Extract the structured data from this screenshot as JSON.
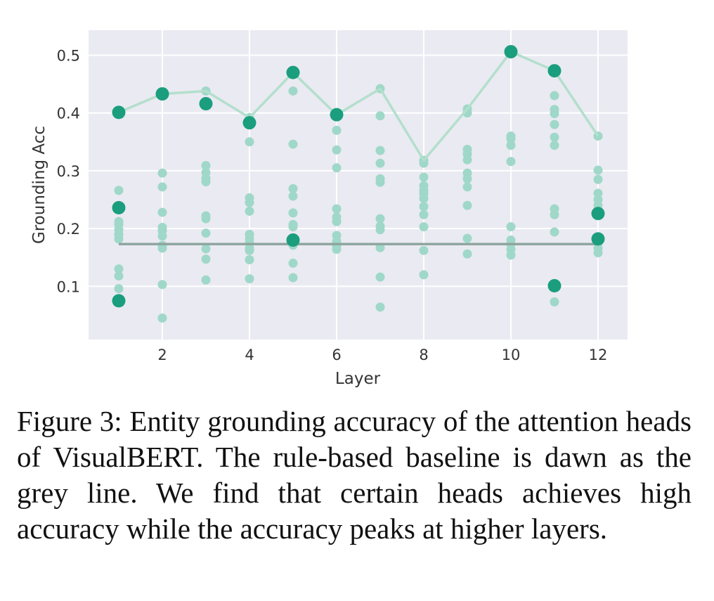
{
  "chart_data": {
    "type": "scatter",
    "xlabel": "Layer",
    "ylabel": "Grounding Acc",
    "xlim": [
      0,
      13
    ],
    "ylim": [
      0,
      0.55
    ],
    "x_ticks": [
      2,
      4,
      6,
      8,
      10,
      12
    ],
    "y_ticks": [
      0.1,
      0.2,
      0.3,
      0.4,
      0.5
    ],
    "grid": true,
    "background_color": "#eaeaf2",
    "colors": {
      "head_points": "#9fd8c8",
      "highlight_points": "#1b9e7e",
      "max_line": "#b3dfcc",
      "baseline": "#8fa6a0"
    },
    "baseline": {
      "x_range": [
        1,
        12
      ],
      "value": 0.173
    },
    "max_line": {
      "x": [
        1,
        2,
        3,
        4,
        5,
        6,
        7,
        8,
        9,
        10,
        11,
        12
      ],
      "y": [
        0.401,
        0.433,
        0.438,
        0.392,
        0.47,
        0.397,
        0.442,
        0.318,
        0.407,
        0.506,
        0.473,
        0.36
      ]
    },
    "heads": [
      {
        "layer": 1,
        "values": [
          0.266,
          0.212,
          0.207,
          0.198,
          0.19,
          0.182,
          0.13,
          0.118,
          0.096
        ]
      },
      {
        "layer": 2,
        "values": [
          0.296,
          0.272,
          0.228,
          0.202,
          0.196,
          0.187,
          0.171,
          0.166,
          0.103,
          0.045
        ]
      },
      {
        "layer": 3,
        "values": [
          0.438,
          0.309,
          0.297,
          0.287,
          0.281,
          0.222,
          0.217,
          0.192,
          0.165,
          0.147,
          0.111
        ]
      },
      {
        "layer": 4,
        "values": [
          0.392,
          0.35,
          0.253,
          0.245,
          0.23,
          0.19,
          0.182,
          0.175,
          0.166,
          0.162,
          0.146,
          0.113
        ]
      },
      {
        "layer": 5,
        "values": [
          0.438,
          0.346,
          0.269,
          0.256,
          0.227,
          0.207,
          0.203,
          0.171,
          0.14,
          0.115
        ]
      },
      {
        "layer": 6,
        "values": [
          0.37,
          0.336,
          0.305,
          0.234,
          0.22,
          0.212,
          0.188,
          0.178,
          0.17,
          0.164
        ]
      },
      {
        "layer": 7,
        "values": [
          0.442,
          0.395,
          0.335,
          0.313,
          0.286,
          0.28,
          0.217,
          0.204,
          0.198,
          0.167,
          0.116,
          0.064
        ]
      },
      {
        "layer": 8,
        "values": [
          0.318,
          0.313,
          0.289,
          0.274,
          0.266,
          0.26,
          0.252,
          0.238,
          0.224,
          0.203,
          0.162,
          0.12
        ]
      },
      {
        "layer": 9,
        "values": [
          0.407,
          0.4,
          0.337,
          0.329,
          0.319,
          0.296,
          0.286,
          0.272,
          0.24,
          0.183,
          0.156
        ]
      },
      {
        "layer": 10,
        "values": [
          0.36,
          0.355,
          0.344,
          0.316,
          0.203,
          0.18,
          0.173,
          0.164,
          0.154
        ]
      },
      {
        "layer": 11,
        "values": [
          0.43,
          0.406,
          0.399,
          0.38,
          0.358,
          0.344,
          0.234,
          0.224,
          0.194,
          0.073
        ]
      },
      {
        "layer": 12,
        "values": [
          0.36,
          0.301,
          0.285,
          0.261,
          0.25,
          0.24,
          0.183,
          0.175,
          0.166,
          0.158
        ]
      }
    ],
    "highlighted_heads": [
      {
        "layer": 1,
        "values": [
          0.401,
          0.236,
          0.075
        ]
      },
      {
        "layer": 2,
        "values": [
          0.433
        ]
      },
      {
        "layer": 3,
        "values": [
          0.416
        ]
      },
      {
        "layer": 4,
        "values": [
          0.383
        ]
      },
      {
        "layer": 5,
        "values": [
          0.47,
          0.18
        ]
      },
      {
        "layer": 6,
        "values": [
          0.397
        ]
      },
      {
        "layer": 10,
        "values": [
          0.506
        ]
      },
      {
        "layer": 11,
        "values": [
          0.473,
          0.101
        ]
      },
      {
        "layer": 12,
        "values": [
          0.226,
          0.182
        ]
      }
    ]
  },
  "caption": "Figure 3: Entity grounding accuracy of the attention heads of VisualBERT. The rule-based baseline is dawn as the grey line. We find that certain heads achieves high accuracy while the accuracy peaks at higher layers."
}
